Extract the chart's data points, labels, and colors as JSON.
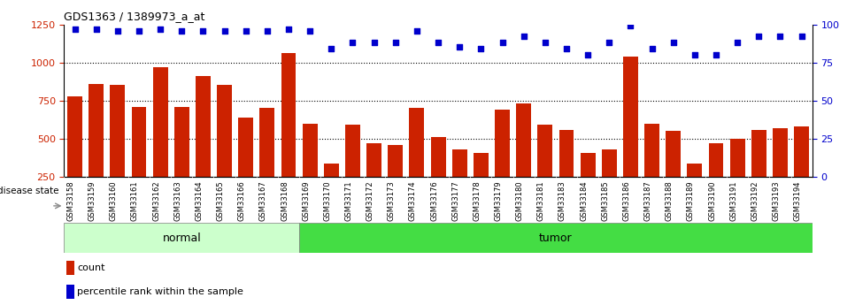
{
  "title": "GDS1363 / 1389973_a_at",
  "samples": [
    "GSM33158",
    "GSM33159",
    "GSM33160",
    "GSM33161",
    "GSM33162",
    "GSM33163",
    "GSM33164",
    "GSM33165",
    "GSM33166",
    "GSM33167",
    "GSM33168",
    "GSM33169",
    "GSM33170",
    "GSM33171",
    "GSM33172",
    "GSM33173",
    "GSM33174",
    "GSM33176",
    "GSM33177",
    "GSM33178",
    "GSM33179",
    "GSM33180",
    "GSM33181",
    "GSM33183",
    "GSM33184",
    "GSM33185",
    "GSM33186",
    "GSM33187",
    "GSM33188",
    "GSM33189",
    "GSM33190",
    "GSM33191",
    "GSM33192",
    "GSM33193",
    "GSM33194"
  ],
  "counts": [
    780,
    860,
    855,
    710,
    970,
    710,
    910,
    855,
    640,
    700,
    1060,
    600,
    340,
    590,
    470,
    460,
    700,
    510,
    430,
    410,
    690,
    730,
    590,
    560,
    410,
    430,
    1040,
    600,
    550,
    340,
    470,
    500,
    560,
    570,
    580
  ],
  "percentiles": [
    97,
    97,
    96,
    96,
    97,
    96,
    96,
    96,
    96,
    96,
    97,
    96,
    84,
    88,
    88,
    88,
    96,
    88,
    85,
    84,
    88,
    92,
    88,
    84,
    80,
    88,
    99,
    84,
    88,
    80,
    80,
    88,
    92,
    92,
    92
  ],
  "group": [
    "normal",
    "normal",
    "normal",
    "normal",
    "normal",
    "normal",
    "normal",
    "normal",
    "normal",
    "normal",
    "normal",
    "tumor",
    "tumor",
    "tumor",
    "tumor",
    "tumor",
    "tumor",
    "tumor",
    "tumor",
    "tumor",
    "tumor",
    "tumor",
    "tumor",
    "tumor",
    "tumor",
    "tumor",
    "tumor",
    "tumor",
    "tumor",
    "tumor",
    "tumor",
    "tumor",
    "tumor",
    "tumor",
    "tumor"
  ],
  "bar_color": "#cc2200",
  "dot_color": "#0000cc",
  "normal_color": "#ccffcc",
  "tumor_color": "#44dd44",
  "xticklabel_bg": "#cccccc",
  "ylim_left": [
    250,
    1250
  ],
  "ylim_right": [
    0,
    100
  ],
  "yticks_left": [
    250,
    500,
    750,
    1000,
    1250
  ],
  "yticks_right": [
    0,
    25,
    50,
    75,
    100
  ],
  "bar_bottom": 250,
  "ylabel_left_color": "#cc2200",
  "ylabel_right_color": "#0000cc"
}
